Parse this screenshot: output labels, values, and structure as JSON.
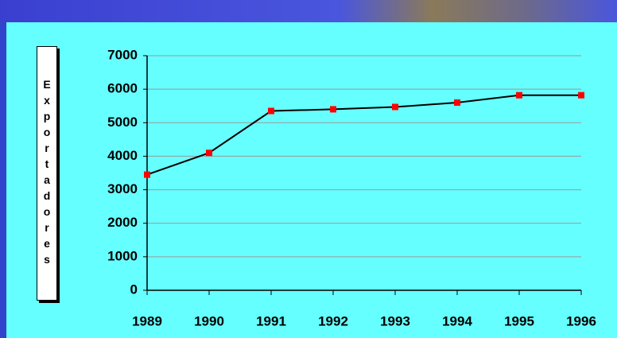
{
  "chart_data": {
    "type": "line",
    "y_label": "Exportadores",
    "x": [
      1989,
      1990,
      1991,
      1992,
      1993,
      1994,
      1995,
      1996
    ],
    "series": [
      {
        "color": "#000000",
        "marker_color": "#ff0000",
        "values": [
          3450,
          4100,
          5350,
          5400,
          5470,
          5600,
          5820,
          5820
        ]
      }
    ],
    "xlim": [
      1989,
      1996
    ],
    "xticks": [
      1989,
      1990,
      1991,
      1992,
      1993,
      1994,
      1995,
      1996
    ],
    "ylim": [
      0,
      7000
    ],
    "yticks": [
      0,
      1000,
      2000,
      3000,
      4000,
      5000,
      6000,
      7000
    ],
    "grid": true
  }
}
